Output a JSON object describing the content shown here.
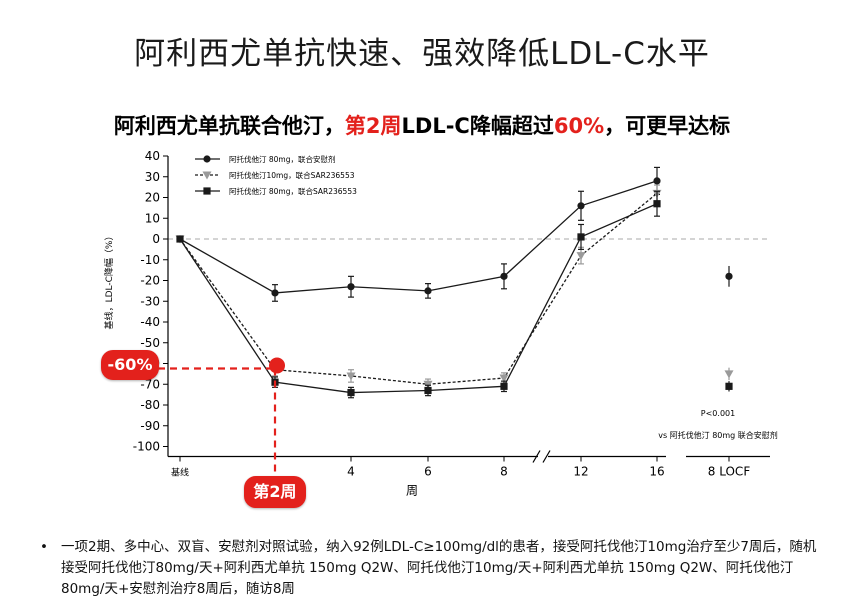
{
  "slide_title": "阿利西尤单抗快速、强效降低LDL-C水平",
  "subtitle": {
    "part1": "阿利西尤单抗联合他汀，",
    "part2": "第2周",
    "part3": "LDL-C降幅超过",
    "part4": "60%",
    "part5": "，可更早达标"
  },
  "callouts": {
    "minus60": "-60%",
    "week2": "第2周"
  },
  "annotation": {
    "pvalue": "P<0.001",
    "vs": "vs 阿托伐他汀 80mg 联合安慰剂"
  },
  "footnote": {
    "bullet": "•",
    "text": "一项2期、多中心、双盲、安慰剂对照试验，纳入92例LDL-C≥100mg/dl的患者，接受阿托伐他汀10mg治疗至少7周后，随机接受阿托伐他汀80mg/天+阿利西尤单抗 150mg Q2W、阿托伐他汀10mg/天+阿利西尤单抗 150mg Q2W、阿托伐他汀80mg/天+安慰剂治疗8周后，随访8周"
  },
  "colors": {
    "accent_red": "#e3211c",
    "placebo_series": "#1a1a1a",
    "sar10_series": "#9a9a9a",
    "sar80_series": "#1a1a1a",
    "zero_line": "#aaaaaa"
  },
  "chart_data": {
    "type": "line",
    "xlabel": "周",
    "ylabel": "基线，LDL-C降幅（%）",
    "ylim": [
      -100,
      40
    ],
    "yticks": [
      40,
      30,
      20,
      10,
      0,
      -10,
      -20,
      -30,
      -40,
      -50,
      -60,
      -70,
      -80,
      -90,
      -100
    ],
    "x_ticks": [
      "基线",
      "4",
      "6",
      "8",
      "12",
      "16",
      "8 LOCF"
    ],
    "zero_line": "dashed",
    "axis_break": "between 8 and 12",
    "legend_position": "top-left",
    "series": [
      {
        "name": "阿托伐他汀 80mg，联合安慰剂",
        "marker": "circle",
        "line": "solid",
        "points": [
          {
            "x": "基线",
            "y": 0,
            "err": 0
          },
          {
            "x": "2",
            "y": -26,
            "err": 4
          },
          {
            "x": "4",
            "y": -23,
            "err": 5
          },
          {
            "x": "6",
            "y": -25,
            "err": 3.5
          },
          {
            "x": "8",
            "y": -18,
            "err": 6
          },
          {
            "x": "12",
            "y": 16,
            "err": 7
          },
          {
            "x": "16",
            "y": 28,
            "err": 6.5
          }
        ],
        "locf": {
          "y": -18,
          "err": 5
        }
      },
      {
        "name": "阿托伐他汀10mg，联合SAR236553",
        "marker": "triangle-down",
        "line": "dotted",
        "points": [
          {
            "x": "基线",
            "y": 0,
            "err": 0
          },
          {
            "x": "2",
            "y": -63,
            "err": 3
          },
          {
            "x": "4",
            "y": -66,
            "err": 3
          },
          {
            "x": "6",
            "y": -70,
            "err": 2.5
          },
          {
            "x": "8",
            "y": -67,
            "err": 2.5
          },
          {
            "x": "12",
            "y": -8,
            "err": 4
          },
          {
            "x": "16",
            "y": 22,
            "err": 4
          }
        ],
        "locf": {
          "y": -65,
          "err": 3
        }
      },
      {
        "name": "阿托伐他汀 80mg，联合SAR236553",
        "marker": "square",
        "line": "solid",
        "points": [
          {
            "x": "基线",
            "y": 0,
            "err": 0
          },
          {
            "x": "2",
            "y": -69,
            "err": 2.5
          },
          {
            "x": "4",
            "y": -74,
            "err": 2.5
          },
          {
            "x": "6",
            "y": -73,
            "err": 2.5
          },
          {
            "x": "8",
            "y": -71,
            "err": 2.5
          },
          {
            "x": "12",
            "y": 1,
            "err": 6
          },
          {
            "x": "16",
            "y": 17,
            "err": 6
          }
        ],
        "locf": {
          "y": -71,
          "err": 2.5
        }
      }
    ]
  }
}
